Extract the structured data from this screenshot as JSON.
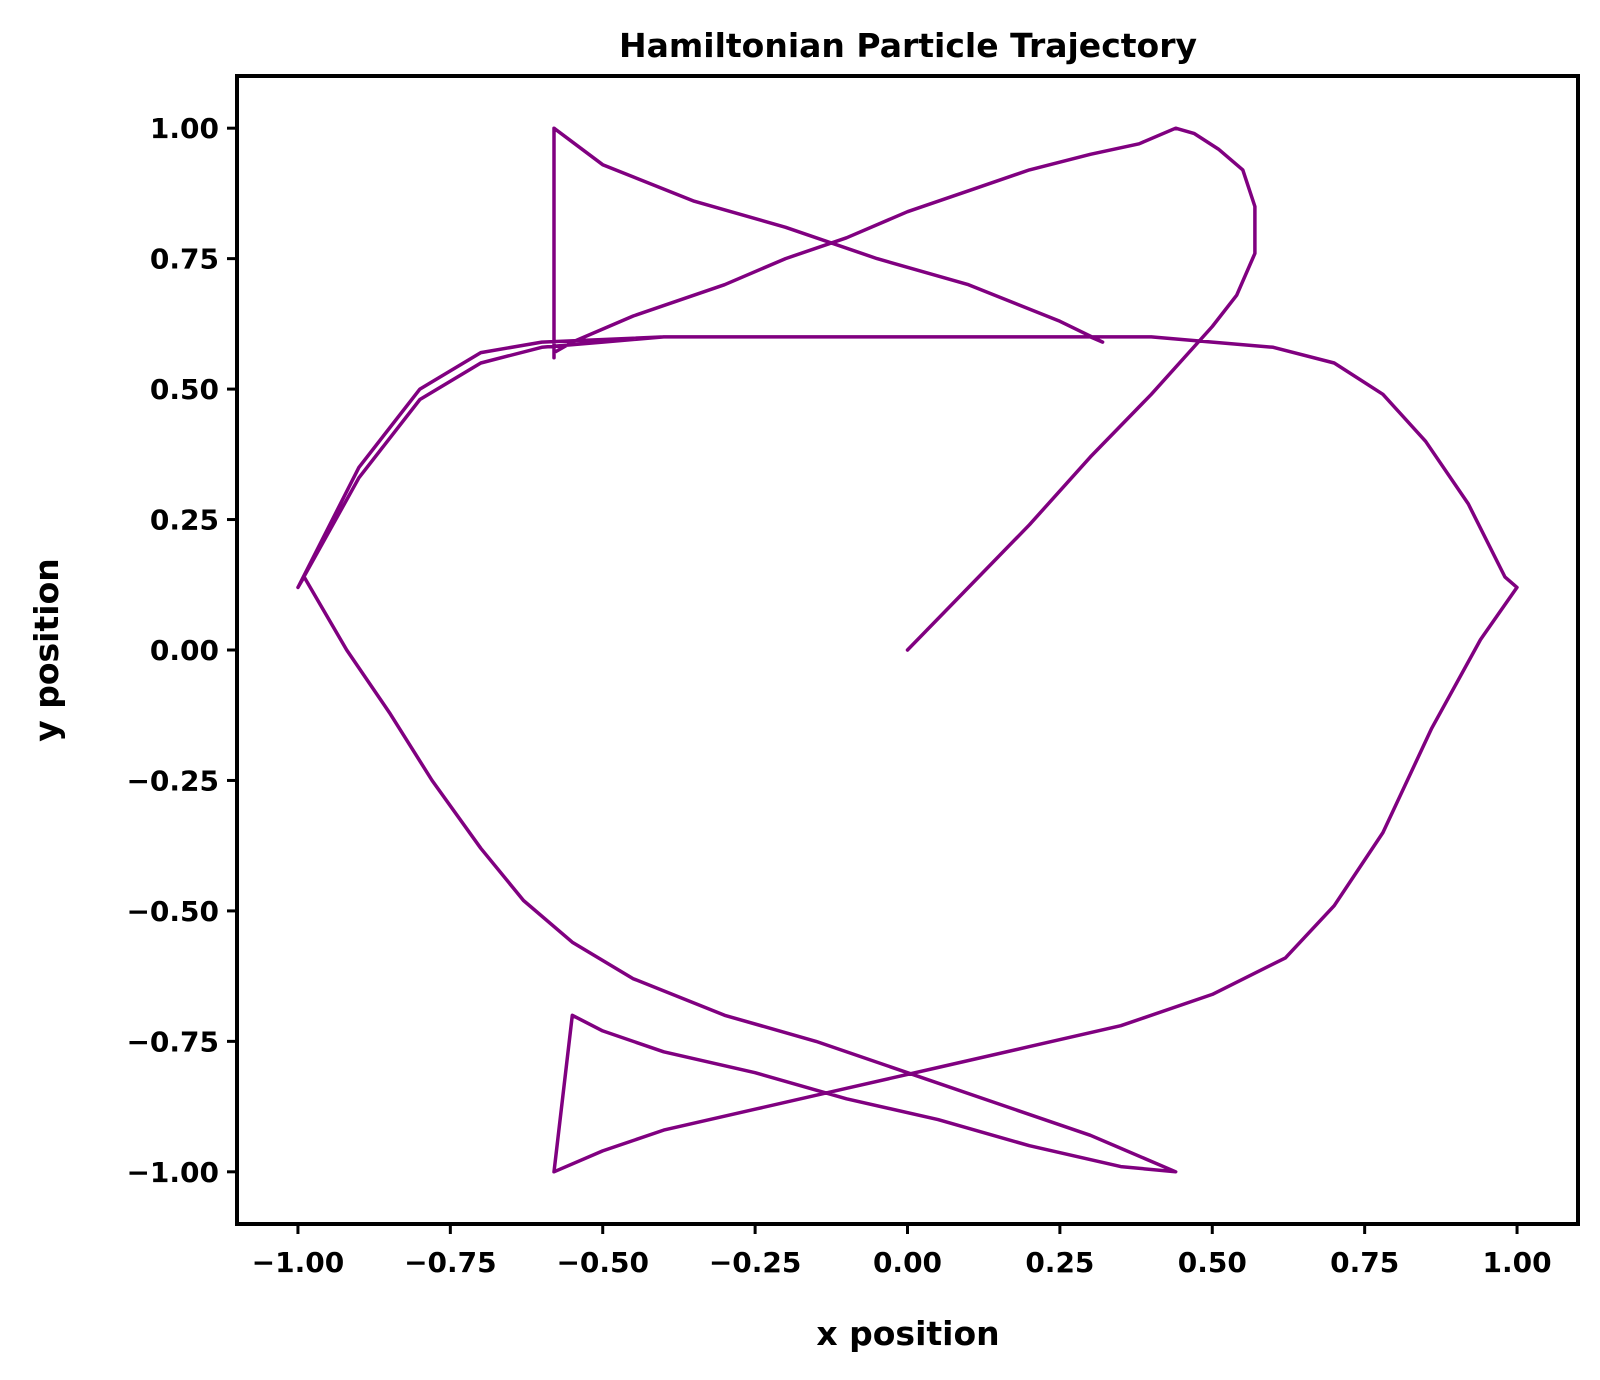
{
  "chart_data": {
    "type": "line",
    "title": "Hamiltonian Particle Trajectory",
    "xlabel": "x position",
    "ylabel": "y position",
    "xlim": [
      -1.1,
      1.1
    ],
    "ylim": [
      -1.1,
      1.1
    ],
    "x_ticks": [
      -1.0,
      -0.75,
      -0.5,
      -0.25,
      0.0,
      0.25,
      0.5,
      0.75,
      1.0
    ],
    "x_tick_labels": [
      "−1.00",
      "−0.75",
      "−0.50",
      "−0.25",
      "0.00",
      "0.25",
      "0.50",
      "0.75",
      "1.00"
    ],
    "y_ticks": [
      1.0,
      0.75,
      0.5,
      0.25,
      0.0,
      -0.25,
      -0.5,
      -0.75,
      -1.0
    ],
    "y_tick_labels": [
      "1.00",
      "0.75",
      "0.50",
      "0.25",
      "0.00",
      "−0.25",
      "−0.50",
      "−0.75",
      "−1.00"
    ],
    "grid": false,
    "legend": false,
    "series": [
      {
        "color": "#800080",
        "x": [
          0.0,
          0.1,
          0.2,
          0.3,
          0.4,
          0.5,
          0.54,
          0.57,
          0.57,
          0.55,
          0.51,
          0.47,
          0.44,
          0.44,
          0.38,
          0.3,
          0.2,
          0.1,
          0.0,
          -0.1,
          -0.2,
          -0.3,
          -0.45,
          -0.55,
          -0.58,
          -0.58,
          -0.58,
          -0.5,
          -0.35,
          -0.2,
          -0.05,
          0.1,
          0.25,
          0.32,
          0.3,
          0.2,
          0.0,
          -0.2,
          -0.4,
          -0.6,
          -0.7,
          -0.8,
          -0.9,
          -1.0,
          -0.99,
          -0.92,
          -0.85,
          -0.78,
          -0.7,
          -0.63,
          -0.55,
          -0.45,
          -0.3,
          -0.15,
          0.0,
          0.15,
          0.3,
          0.44,
          0.35,
          0.2,
          0.05,
          -0.1,
          -0.25,
          -0.4,
          -0.5,
          -0.55,
          -0.58,
          -0.5,
          -0.4,
          -0.25,
          -0.1,
          0.05,
          0.2,
          0.35,
          0.5,
          0.62,
          0.7,
          0.78,
          0.86,
          0.94,
          1.0,
          0.98,
          0.92,
          0.85,
          0.78,
          0.7,
          0.6,
          0.5,
          0.4,
          0.3,
          0.2,
          0.1,
          0.0,
          -0.1,
          -0.2,
          -0.3,
          -0.4,
          -0.5,
          -0.6,
          -0.7,
          -0.8,
          -0.9,
          -1.0
        ],
        "y": [
          0.0,
          0.12,
          0.24,
          0.37,
          0.49,
          0.62,
          0.68,
          0.76,
          0.85,
          0.92,
          0.96,
          0.99,
          1.0,
          1.0,
          0.97,
          0.95,
          0.92,
          0.88,
          0.84,
          0.79,
          0.75,
          0.7,
          0.64,
          0.59,
          0.57,
          0.56,
          1.0,
          0.93,
          0.86,
          0.81,
          0.75,
          0.7,
          0.63,
          0.59,
          0.6,
          0.6,
          0.6,
          0.6,
          0.6,
          0.59,
          0.57,
          0.5,
          0.35,
          0.12,
          0.14,
          0.0,
          -0.12,
          -0.25,
          -0.38,
          -0.48,
          -0.56,
          -0.63,
          -0.7,
          -0.75,
          -0.81,
          -0.87,
          -0.93,
          -1.0,
          -0.99,
          -0.95,
          -0.9,
          -0.86,
          -0.81,
          -0.77,
          -0.73,
          -0.7,
          -1.0,
          -0.96,
          -0.92,
          -0.88,
          -0.84,
          -0.8,
          -0.76,
          -0.72,
          -0.66,
          -0.59,
          -0.49,
          -0.35,
          -0.15,
          0.02,
          0.12,
          0.14,
          0.28,
          0.4,
          0.49,
          0.55,
          0.58,
          0.59,
          0.6,
          0.6,
          0.6,
          0.6,
          0.6,
          0.6,
          0.6,
          0.6,
          0.6,
          0.59,
          0.58,
          0.55,
          0.48,
          0.33,
          0.12
        ]
      }
    ]
  }
}
